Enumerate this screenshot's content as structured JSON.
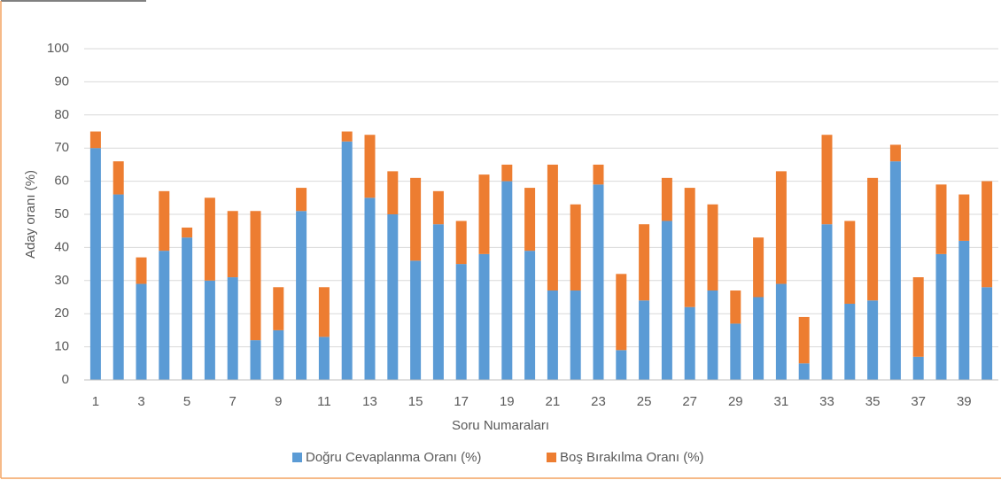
{
  "chart_data": {
    "type": "stacked_bar",
    "x_label": "Soru Numaraları",
    "y_label": "Aday oranı (%)",
    "categories": [
      "1",
      null,
      "3",
      null,
      "5",
      null,
      "7",
      null,
      "9",
      null,
      "11",
      null,
      "13",
      null,
      "15",
      null,
      "17",
      null,
      "19",
      null,
      "21",
      null,
      "23",
      null,
      "25",
      null,
      "27",
      null,
      "29",
      null,
      "31",
      null,
      "33",
      null,
      "35",
      null,
      "37",
      null,
      "39",
      null
    ],
    "series": [
      {
        "name": "Doğru Cevaplanma Oranı (%)",
        "color": "#5b9bd5",
        "values": [
          70,
          56,
          29,
          39,
          43,
          30,
          31,
          12,
          15,
          51,
          13,
          72,
          55,
          50,
          36,
          47,
          35,
          38,
          60,
          39,
          27,
          27,
          59,
          9,
          24,
          48,
          22,
          27,
          17,
          25,
          29,
          5,
          47,
          23,
          24,
          66,
          7,
          38,
          42,
          28
        ]
      },
      {
        "name": "Boş Bırakılma Oranı (%)",
        "color": "#ed7d31",
        "values": [
          5,
          10,
          8,
          18,
          3,
          25,
          20,
          39,
          13,
          7,
          15,
          3,
          19,
          13,
          25,
          10,
          13,
          24,
          5,
          19,
          38,
          26,
          6,
          23,
          23,
          13,
          36,
          26,
          10,
          18,
          34,
          14,
          27,
          25,
          37,
          5,
          24,
          21,
          14,
          32
        ]
      }
    ],
    "ylim": [
      0,
      100
    ],
    "yticks": [
      0,
      10,
      20,
      30,
      40,
      50,
      60,
      70,
      80,
      90,
      100
    ],
    "grid": true,
    "legend": "bottom"
  }
}
